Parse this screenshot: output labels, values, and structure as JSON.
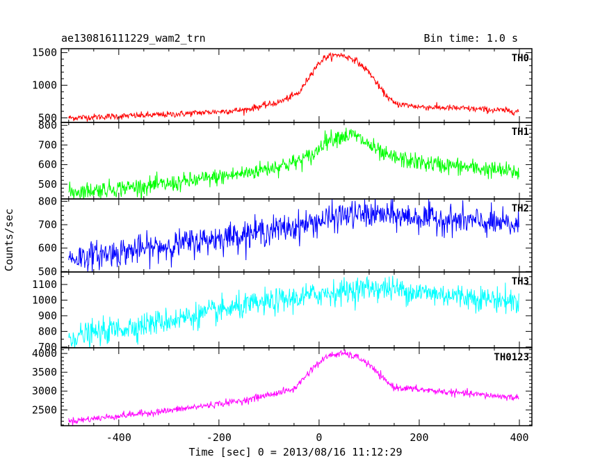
{
  "header": {
    "title": "ae130816111229_wam2_trn",
    "bin_time": "Bin time: 1.0 s"
  },
  "chart_data": {
    "type": "line",
    "xlabel": "Time [sec] 0 = 2013/08/16 11:12:29",
    "ylabel": "Counts/sec",
    "xlim": [
      -515,
      425
    ],
    "x_ticks": [
      -400,
      -200,
      0,
      200,
      400
    ],
    "x_range": [
      -500,
      399
    ],
    "bin_time_s": 1.0,
    "panels": [
      {
        "name": "TH0",
        "color": "#ff0000",
        "ylim": [
          430,
          1560
        ],
        "y_ticks": [
          500,
          1000,
          1500
        ],
        "profile": [
          [
            -500,
            500
          ],
          [
            -300,
            550
          ],
          [
            -150,
            620
          ],
          [
            -80,
            740
          ],
          [
            -40,
            880
          ],
          [
            -10,
            1250
          ],
          [
            10,
            1420
          ],
          [
            40,
            1470
          ],
          [
            70,
            1400
          ],
          [
            100,
            1200
          ],
          [
            125,
            920
          ],
          [
            150,
            720
          ],
          [
            200,
            670
          ],
          [
            300,
            640
          ],
          [
            399,
            600
          ]
        ],
        "noise": 25
      },
      {
        "name": "TH1",
        "color": "#00ff00",
        "ylim": [
          425,
          815
        ],
        "y_ticks": [
          500,
          600,
          700,
          800
        ],
        "profile": [
          [
            -500,
            460
          ],
          [
            -300,
            500
          ],
          [
            -150,
            555
          ],
          [
            -50,
            610
          ],
          [
            -10,
            650
          ],
          [
            10,
            720
          ],
          [
            40,
            745
          ],
          [
            70,
            750
          ],
          [
            100,
            700
          ],
          [
            130,
            645
          ],
          [
            200,
            610
          ],
          [
            300,
            585
          ],
          [
            399,
            560
          ]
        ],
        "noise": 22
      },
      {
        "name": "TH2",
        "color": "#0000ff",
        "ylim": [
          498,
          810
        ],
        "y_ticks": [
          500,
          600,
          700,
          800
        ],
        "profile": [
          [
            -500,
            555
          ],
          [
            -300,
            610
          ],
          [
            -150,
            660
          ],
          [
            -50,
            690
          ],
          [
            0,
            715
          ],
          [
            50,
            740
          ],
          [
            100,
            745
          ],
          [
            200,
            730
          ],
          [
            300,
            715
          ],
          [
            399,
            695
          ]
        ],
        "noise": 30
      },
      {
        "name": "TH3",
        "color": "#00ffff",
        "ylim": [
          695,
          1180
        ],
        "y_ticks": [
          700,
          800,
          900,
          1000,
          1100
        ],
        "profile": [
          [
            -500,
            760
          ],
          [
            -300,
            870
          ],
          [
            -150,
            960
          ],
          [
            -50,
            1010
          ],
          [
            0,
            1040
          ],
          [
            60,
            1060
          ],
          [
            100,
            1080
          ],
          [
            150,
            1070
          ],
          [
            200,
            1050
          ],
          [
            300,
            1020
          ],
          [
            399,
            990
          ]
        ],
        "noise": 40
      },
      {
        "name": "TH0123",
        "color": "#ff00ff",
        "ylim": [
          2080,
          4150
        ],
        "y_ticks": [
          2500,
          3000,
          3500,
          4000
        ],
        "profile": [
          [
            -500,
            2200
          ],
          [
            -300,
            2480
          ],
          [
            -150,
            2750
          ],
          [
            -50,
            3050
          ],
          [
            -10,
            3650
          ],
          [
            20,
            3950
          ],
          [
            50,
            4000
          ],
          [
            80,
            3880
          ],
          [
            100,
            3700
          ],
          [
            130,
            3300
          ],
          [
            150,
            3100
          ],
          [
            250,
            2980
          ],
          [
            399,
            2820
          ]
        ],
        "noise": 45
      }
    ]
  }
}
